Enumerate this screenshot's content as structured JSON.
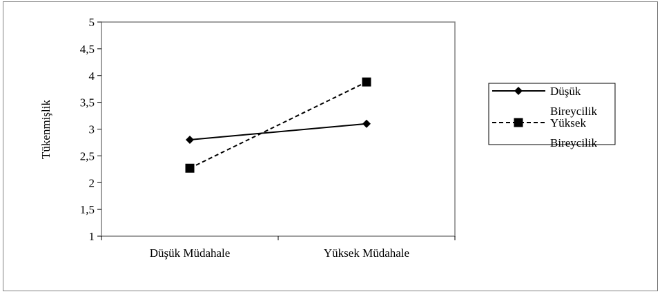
{
  "chart_data": {
    "type": "line",
    "categories": [
      "Düşük Müdahale",
      "Yüksek Müdahale"
    ],
    "ylabel": "Tükenmişlik",
    "xlabel": "",
    "ylim": [
      1,
      5
    ],
    "y_ticks": [
      "1",
      "1,5",
      "2",
      "2,5",
      "3",
      "3,5",
      "4",
      "4,5",
      "5"
    ],
    "y_tick_values": [
      1,
      1.5,
      2,
      2.5,
      3,
      3.5,
      4,
      4.5,
      5
    ],
    "grid": false,
    "legend_position": "right",
    "series": [
      {
        "name_lines": [
          "Düşük",
          "Bireycilik"
        ],
        "values": [
          2.8,
          3.1
        ],
        "line_style": "solid",
        "marker": "diamond",
        "color": "#000000"
      },
      {
        "name_lines": [
          "Yüksek",
          "Bireycilik"
        ],
        "values": [
          2.27,
          3.88
        ],
        "line_style": "dashed",
        "marker": "square",
        "color": "#000000"
      }
    ]
  },
  "colors": {
    "plot_border": "#808080",
    "frame_border": "#808080",
    "ink": "#000000"
  }
}
